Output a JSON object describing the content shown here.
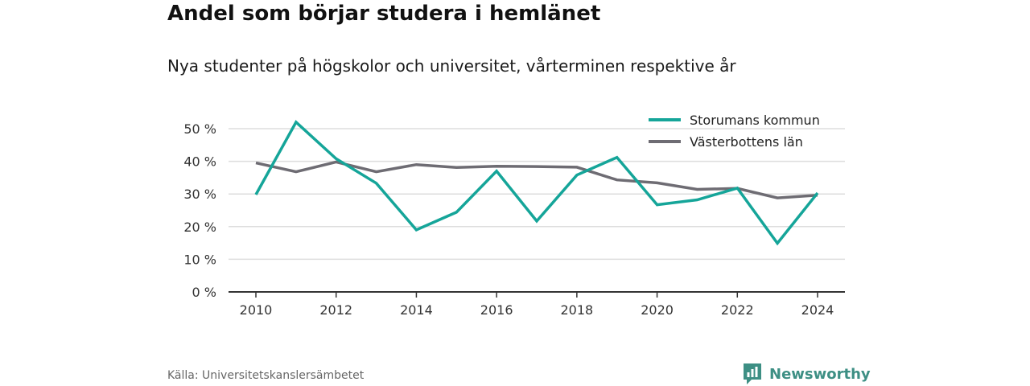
{
  "header": {
    "title": "Andel som börjar studera i hemlänet",
    "subtitle": "Nya studenter på högskolor och universitet, vårterminen respektive år"
  },
  "footer": {
    "source": "Källa: Universitetskanslersämbetet",
    "brand": "Newsworthy"
  },
  "colors": {
    "brand": "#3d8f84"
  },
  "chart_data": {
    "type": "line",
    "title": "Andel som börjar studera i hemlänet",
    "subtitle": "Nya studenter på högskolor och universitet, vårterminen respektive år",
    "xlabel": "",
    "ylabel": "",
    "x": [
      2010,
      2011,
      2012,
      2013,
      2014,
      2015,
      2016,
      2017,
      2018,
      2019,
      2020,
      2021,
      2022,
      2023,
      2024
    ],
    "xticks": [
      "2010",
      "2012",
      "2014",
      "2016",
      "2018",
      "2020",
      "2022",
      "2024"
    ],
    "yticks": [
      "0 %",
      "10 %",
      "20 %",
      "30 %",
      "40 %",
      "50 %"
    ],
    "ylim": [
      0,
      50
    ],
    "grid": true,
    "legend_position": "top-right",
    "series": [
      {
        "name": "Storumans kommun",
        "color": "#15a599",
        "values": [
          29.8,
          52.0,
          40.8,
          33.3,
          19.0,
          24.4,
          37.0,
          21.7,
          35.8,
          41.2,
          26.7,
          28.2,
          31.8,
          14.9,
          30.3
        ]
      },
      {
        "name": "Västerbottens län",
        "color": "#6e6c73",
        "values": [
          39.5,
          36.8,
          39.8,
          36.8,
          39.0,
          38.1,
          38.5,
          38.4,
          38.2,
          34.3,
          33.4,
          31.4,
          31.7,
          28.8,
          29.6
        ]
      }
    ]
  }
}
